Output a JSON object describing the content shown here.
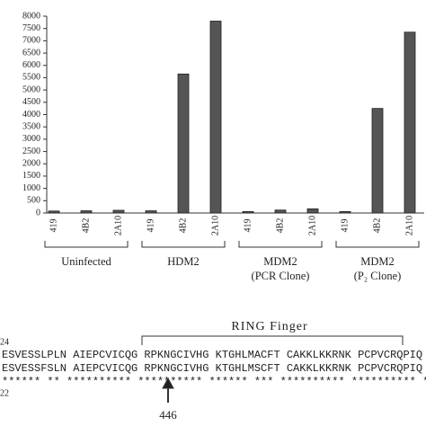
{
  "chart_data": {
    "type": "bar",
    "categories": [
      "419",
      "4B2",
      "2A10",
      "419",
      "4B2",
      "2A10",
      "419",
      "4B2",
      "2A10",
      "419",
      "4B2",
      "2A10"
    ],
    "values": [
      80,
      90,
      110,
      90,
      5650,
      7800,
      60,
      120,
      170,
      60,
      4250,
      7350
    ],
    "color": "#555555",
    "groups": [
      [
        "Uninfected"
      ],
      [
        "HDM2"
      ],
      [
        "MDM2",
        "(PCR Clone)"
      ],
      [
        "MDM2",
        "(P₂ Clone)"
      ]
    ],
    "ylim": [
      0,
      8000
    ],
    "yticks": [
      0,
      500,
      1000,
      1500,
      2000,
      2500,
      3000,
      3500,
      4000,
      4500,
      5000,
      5500,
      6000,
      6500,
      7000,
      7500,
      8000
    ],
    "grid": false
  },
  "alignment": {
    "domain_label": "RING Finger",
    "start_top": "24",
    "start_bottom": "22",
    "seq_top": "ESVESSLPLN AIEPCVICQG RPKNGCIVHG KTGHLMACFT CAKKLKKRNK PCPVCRQPIQ M",
    "seq_bottom": "ESVESSFSLN AIEPCVICQG RPKNGCIVHG KTGHLMSCFT CAKKLKKRNK PCPVCRQPIQ M",
    "conservation": "******  ** ********** ********** ****** *** ********** ********** *",
    "marker": "446"
  }
}
